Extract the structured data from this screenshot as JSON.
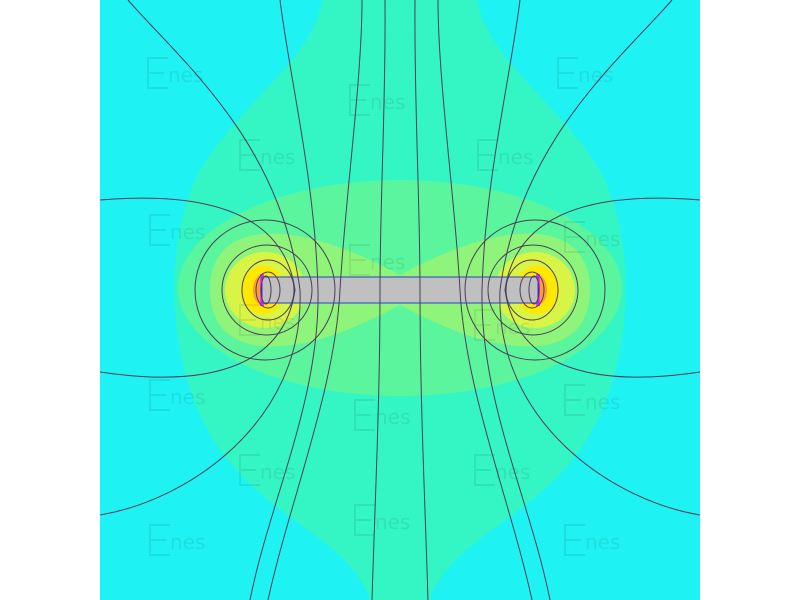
{
  "colors": {
    "background": "#1ff2f2",
    "level1": "#34f5c4",
    "level2": "#5af59c",
    "level3": "#8ef57a",
    "level4": "#d8f545",
    "level5": "#ffe800",
    "level6": "#ff9b3a",
    "level7": "#ff30ff",
    "rod": "#c0c0c0",
    "rod_outline": "#2a40c8",
    "field_lines": "#4a3d5a"
  },
  "watermark": {
    "logo_text": "Enes"
  }
}
